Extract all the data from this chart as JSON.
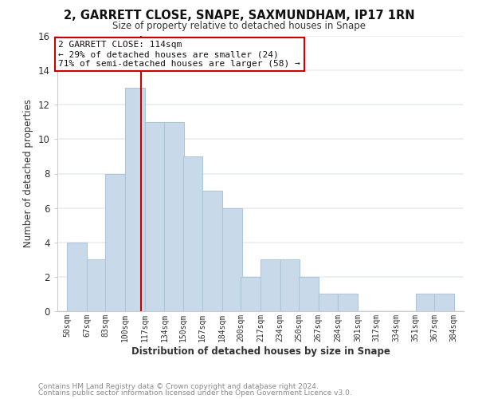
{
  "title": "2, GARRETT CLOSE, SNAPE, SAXMUNDHAM, IP17 1RN",
  "subtitle": "Size of property relative to detached houses in Snape",
  "xlabel": "Distribution of detached houses by size in Snape",
  "ylabel": "Number of detached properties",
  "bar_color": "#c8daea",
  "bar_edgecolor": "#aec6d8",
  "vline_x": 114,
  "vline_color": "#cc0000",
  "bins": [
    50,
    67,
    83,
    100,
    117,
    134,
    150,
    167,
    184,
    200,
    217,
    234,
    250,
    267,
    284,
    301,
    317,
    334,
    351,
    367,
    384
  ],
  "counts": [
    4,
    3,
    8,
    13,
    11,
    11,
    9,
    7,
    6,
    2,
    3,
    3,
    2,
    1,
    1,
    0,
    0,
    0,
    1,
    1
  ],
  "tick_labels": [
    "50sqm",
    "67sqm",
    "83sqm",
    "100sqm",
    "117sqm",
    "134sqm",
    "150sqm",
    "167sqm",
    "184sqm",
    "200sqm",
    "217sqm",
    "234sqm",
    "250sqm",
    "267sqm",
    "284sqm",
    "301sqm",
    "317sqm",
    "334sqm",
    "351sqm",
    "367sqm",
    "384sqm"
  ],
  "ylim": [
    0,
    16
  ],
  "yticks": [
    0,
    2,
    4,
    6,
    8,
    10,
    12,
    14,
    16
  ],
  "annotation_title": "2 GARRETT CLOSE: 114sqm",
  "annotation_line1": "← 29% of detached houses are smaller (24)",
  "annotation_line2": "71% of semi-detached houses are larger (58) →",
  "annotation_box_color": "#ffffff",
  "annotation_box_edgecolor": "#cc0000",
  "footer1": "Contains HM Land Registry data © Crown copyright and database right 2024.",
  "footer2": "Contains public sector information licensed under the Open Government Licence v3.0.",
  "background_color": "#ffffff",
  "grid_color": "#e8eef4"
}
